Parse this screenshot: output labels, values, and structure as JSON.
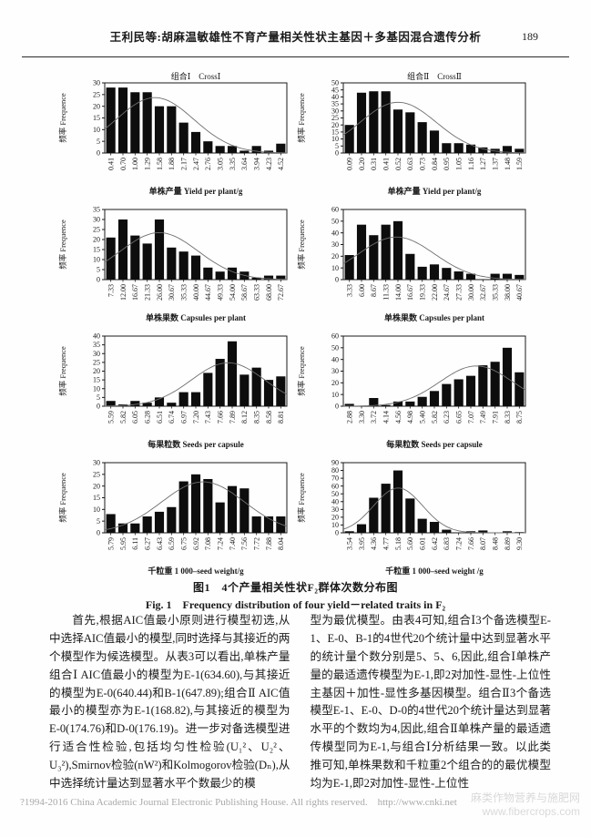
{
  "header": {
    "title": "王利民等:胡麻温敏雄性不育产量相关性状主基因＋多基因混合遗传分析",
    "page_number": "189"
  },
  "figure": {
    "caption_cn": "图1　4个产量相关性状F₂群体次数分布图",
    "caption_en": "Fig. 1　Frequency distribution of four yield－related traits in F₂"
  },
  "chart_data": [
    {
      "type": "bar",
      "title": "组合Ⅰ　CrossⅠ",
      "ylabel": "频率  Frequence",
      "xlabel": "单株产量  Yield per plant/g",
      "categories": [
        "0.41",
        "0.70",
        "1.00",
        "1.29",
        "1.58",
        "1.88",
        "2.17",
        "2.47",
        "2.76",
        "3.05",
        "3.35",
        "3.64",
        "3.94",
        "4.23",
        "4.52"
      ],
      "values": [
        28,
        28,
        26,
        26,
        20,
        20,
        13,
        9,
        5,
        3,
        3,
        1,
        3,
        1,
        4
      ],
      "ylim": [
        0,
        30
      ],
      "ytick_step": 5,
      "curve": "normal-fit",
      "legend": "none",
      "grid": "off"
    },
    {
      "type": "bar",
      "title": "组合Ⅱ　CrossⅡ",
      "ylabel": "频率  Frequence",
      "xlabel": "单株产量  Yield per plant/g",
      "categories": [
        "0.09",
        "0.20",
        "0.31",
        "0.41",
        "0.52",
        "0.63",
        "0.73",
        "0.84",
        "0.95",
        "1.05",
        "1.16",
        "1.27",
        "1.37",
        "1.48",
        "1.59"
      ],
      "values": [
        20,
        43,
        44,
        44,
        31,
        29,
        22,
        16,
        7,
        7,
        6,
        4,
        3,
        5,
        3
      ],
      "ylim": [
        0,
        50
      ],
      "ytick_step": 5,
      "curve": "normal-fit",
      "legend": "none",
      "grid": "off"
    },
    {
      "type": "bar",
      "title": "",
      "ylabel": "频率  Frequence",
      "xlabel": "单株果数  Capsules per plant",
      "categories": [
        "7.33",
        "12.00",
        "16.67",
        "21.33",
        "26.00",
        "30.67",
        "35.33",
        "40.00",
        "44.67",
        "49.33",
        "54.00",
        "58.67",
        "63.33",
        "68.00",
        "72.67"
      ],
      "values": [
        21,
        30,
        22,
        18,
        30,
        16,
        14,
        12,
        6,
        4,
        6,
        4,
        1,
        2,
        2
      ],
      "ylim": [
        0,
        35
      ],
      "ytick_step": 5,
      "curve": "normal-fit",
      "legend": "none",
      "grid": "off"
    },
    {
      "type": "bar",
      "title": "",
      "ylabel": "频率  Frequence",
      "xlabel": "单株果数  Capsules per plant",
      "categories": [
        "3.33",
        "6.00",
        "8.67",
        "11.33",
        "14.00",
        "16.67",
        "19.33",
        "22.00",
        "24.67",
        "27.33",
        "30.00",
        "32.67",
        "35.33",
        "38.00",
        "40.67"
      ],
      "values": [
        21,
        47,
        38,
        47,
        50,
        22,
        11,
        13,
        10,
        7,
        5,
        0,
        5,
        5,
        4
      ],
      "ylim": [
        0,
        60
      ],
      "ytick_step": 10,
      "curve": "normal-fit",
      "legend": "none",
      "grid": "off"
    },
    {
      "type": "bar",
      "title": "",
      "ylabel": "频率  Frequence",
      "xlabel": "每果粒数  Seeds per capsule",
      "categories": [
        "5.59",
        "5.82",
        "6.05",
        "6.28",
        "6.51",
        "6.74",
        "6.97",
        "7.20",
        "7.43",
        "7.66",
        "7.89",
        "8.12",
        "8.35",
        "8.58",
        "8.81"
      ],
      "values": [
        3,
        1,
        3,
        2,
        5,
        2,
        8,
        8,
        19,
        27,
        37,
        18,
        22,
        15,
        17
      ],
      "ylim": [
        0,
        40
      ],
      "ytick_step": 5,
      "curve": "normal-fit",
      "legend": "none",
      "grid": "off"
    },
    {
      "type": "bar",
      "title": "",
      "ylabel": "频率  Frequence",
      "xlabel": "每果粒数  Seeds per capsule",
      "categories": [
        "2.88",
        "3.30",
        "3.72",
        "4.14",
        "4.56",
        "4.98",
        "5.40",
        "5.82",
        "6.23",
        "6.65",
        "7.07",
        "7.49",
        "7.91",
        "8.33",
        "8.75"
      ],
      "values": [
        2,
        0,
        7,
        1,
        4,
        4,
        8,
        13,
        19,
        23,
        26,
        35,
        38,
        50,
        29
      ],
      "ylim": [
        0,
        60
      ],
      "ytick_step": 10,
      "curve": "normal-fit",
      "legend": "none",
      "grid": "off"
    },
    {
      "type": "bar",
      "title": "",
      "ylabel": "频率  Frequence",
      "xlabel": "千粒重  1 000–seed weight/g",
      "categories": [
        "5.79",
        "5.95",
        "6.11",
        "6.27",
        "6.43",
        "6.59",
        "6.75",
        "6.92",
        "7.08",
        "7.24",
        "7.40",
        "7.56",
        "7.72",
        "7.88",
        "8.04"
      ],
      "values": [
        8,
        4,
        4,
        7,
        9,
        11,
        22,
        25,
        23,
        13,
        20,
        19,
        7,
        7,
        7
      ],
      "ylim": [
        0,
        30
      ],
      "ytick_step": 5,
      "curve": "normal-fit",
      "legend": "none",
      "grid": "off"
    },
    {
      "type": "bar",
      "title": "",
      "ylabel": "频率  Frequence",
      "xlabel": "千粒重  1 000–seed weight /g",
      "categories": [
        "3.54",
        "3.95",
        "4.36",
        "4.77",
        "5.18",
        "5.60",
        "6.01",
        "6.42",
        "6.83",
        "7.24",
        "7.66",
        "8.07",
        "8.48",
        "8.89",
        "9.30"
      ],
      "values": [
        2,
        11,
        45,
        63,
        80,
        44,
        18,
        14,
        4,
        0,
        2,
        3,
        0,
        2,
        1
      ],
      "ylim": [
        0,
        90
      ],
      "ytick_step": 10,
      "curve": "normal-fit",
      "legend": "none",
      "grid": "off"
    }
  ],
  "body": {
    "left_column": "首先,根据AIC值最小原则进行模型初选,从中选择AIC值最小的模型,同时选择与其接近的两个模型作为候选模型。从表3可以看出,单株产量组合Ⅰ AIC值最小的模型为E-1(634.60),与其接近的模型为E-0(640.44)和B-1(647.89);组合Ⅱ AIC值最小的模型亦为E-1(168.82),与其接近的模型为E-0(174.76)和D-0(176.19)。进一步对备选模型进行适合性检验,包括均匀性检验(U₁²、U₂²、U₃²),Smirnov检验(nW²)和Kolmogorov检验(Dₙ),从中选择统计量达到显著水平个数最少的模",
    "right_column": "型为最优模型。由表4可知,组合Ⅰ3个备选模型E-1、E-0、B-1的4世代20个统计量中达到显著水平的统计量个数分别是5、5、6,因此,组合Ⅰ单株产量的最适遗传模型为E-1,即2对加性-显性-上位性主基因＋加性-显性多基因模型。组合Ⅱ3个备选模型E-1、E-0、D-0的4世代20个统计量达到显著水平的个数均为4,因此,组合Ⅱ单株产量的最适遗传模型同为E-1,与组合Ⅰ分析结果一致。以此类推可知,单株果数和千粒重2个组合的的最优模型均为E-1,即2对加性-显性-上位性"
  },
  "footer": {
    "copyright": "?1994-2016 China Academic Journal Electronic Publishing House. All rights reserved.",
    "url": "http://www.cnki.net",
    "watermark_line1": "麻类作物营养与施肥网",
    "watermark_line2": "www.fibercrops.com"
  },
  "colors": {
    "bar_fill": "#0d0d0d",
    "curve_stroke": "#6f6f6f",
    "axis_stroke": "#1a1a1a",
    "footer_text": "#a9a9a9",
    "watermark_text": "#d9d9d9"
  }
}
